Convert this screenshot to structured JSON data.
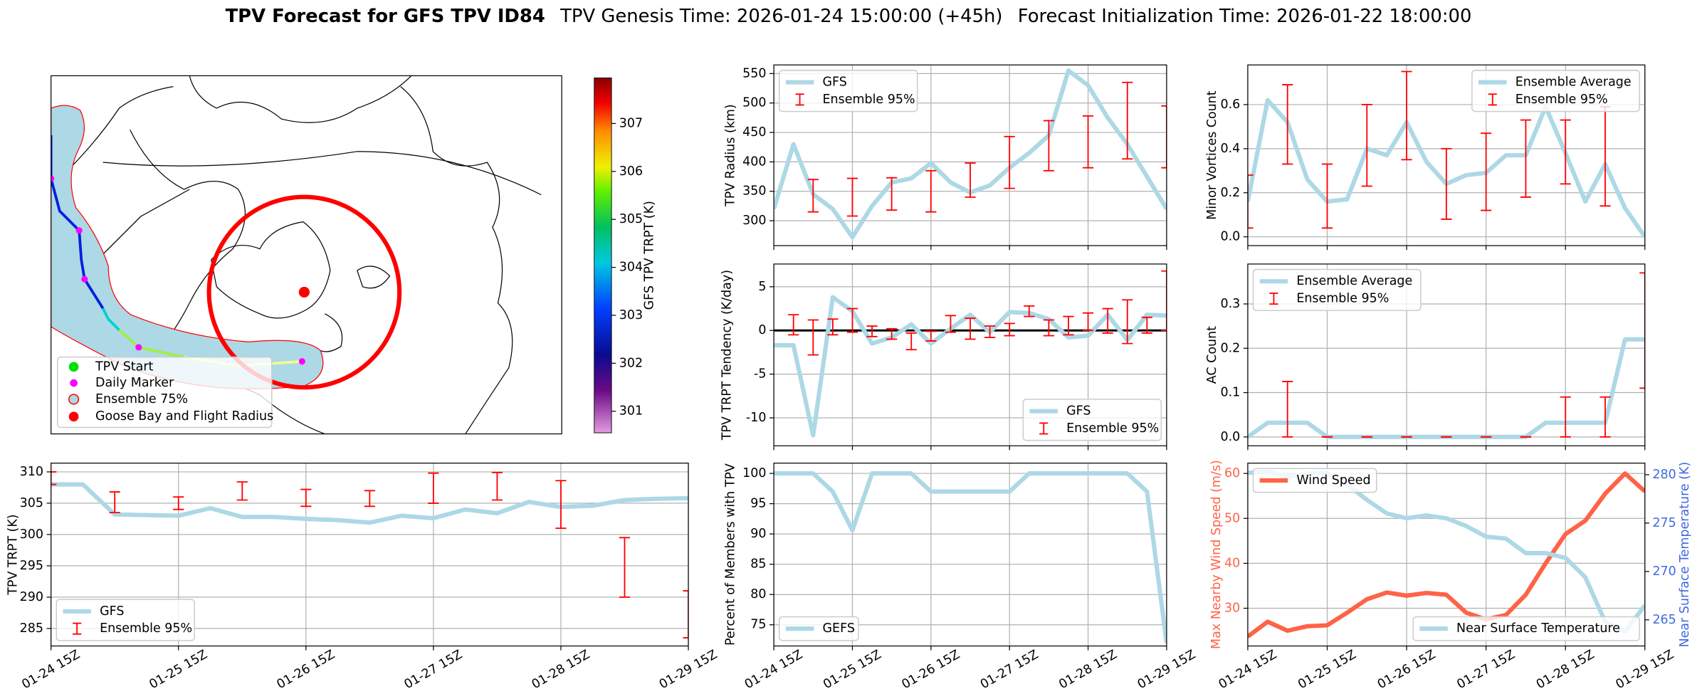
{
  "title_parts": [
    "TPV Forecast for GFS TPV ID84",
    "TPV Genesis Time: 2026-01-24 15:00:00 (+45h)",
    "Forecast Initialization Time: 2026-01-22 18:00:00"
  ],
  "chart_data": [
    {
      "type": "map",
      "legend": [
        "TPV Start",
        "Daily Marker",
        "Ensemble 75%",
        "Goose Bay and Flight Radius"
      ],
      "colorbar_label": "GFS TPV TRPT (K)",
      "clim": [
        300.55,
        307.95
      ],
      "cticks": [
        301,
        302,
        303,
        304,
        305,
        306,
        307
      ]
    },
    {
      "type": "line",
      "ylabel": "TPV TRPT (K)",
      "grid": true,
      "legend": "lower left",
      "x": [
        0,
        6,
        12,
        18,
        24,
        30,
        36,
        42,
        48,
        54,
        60,
        66,
        72,
        78,
        84,
        90,
        96,
        102,
        108,
        114,
        120
      ],
      "xlim": [
        0,
        120
      ],
      "xticks": [
        {
          "value": 0,
          "label": "01-24 15Z"
        },
        {
          "value": 24,
          "label": "01-25 15Z"
        },
        {
          "value": 48,
          "label": "01-26 15Z"
        },
        {
          "value": 72,
          "label": "01-27 15Z"
        },
        {
          "value": 96,
          "label": "01-28 15Z"
        },
        {
          "value": 120,
          "label": "01-29 15Z"
        }
      ],
      "ylim": [
        282.2,
        311.4
      ],
      "yticks": [
        285,
        290,
        295,
        300,
        305,
        310
      ],
      "series": [
        {
          "name": "GFS",
          "color": "#add8e6",
          "values": [
            308,
            308,
            303.2,
            303.1,
            303,
            304.2,
            302.8,
            302.8,
            302.5,
            302.3,
            301.9,
            303,
            302.6,
            304,
            303.4,
            305.2,
            304.4,
            304.6,
            305.5,
            305.7,
            305.8
          ]
        }
      ],
      "errorbars": {
        "name": "Ensemble 95%",
        "color": "#ff0000",
        "x": [
          0,
          12,
          24,
          36,
          48,
          60,
          72,
          84,
          96,
          108,
          120
        ],
        "low": [
          308,
          303.5,
          304,
          305.5,
          304.5,
          304.5,
          305,
          305.5,
          301,
          290,
          283.5
        ],
        "high": [
          310,
          306.8,
          306,
          308.4,
          307.2,
          307,
          309.8,
          309.9,
          308.6,
          299.5,
          291
        ]
      }
    },
    {
      "type": "line",
      "ylabel": "TPV Radius (km)",
      "grid": true,
      "legend": "upper left",
      "x": [
        0,
        6,
        12,
        18,
        24,
        30,
        36,
        42,
        48,
        54,
        60,
        66,
        72,
        78,
        84,
        90,
        96,
        102,
        108,
        114,
        120
      ],
      "xlim": [
        0,
        120
      ],
      "xticks": [
        0,
        24,
        48,
        72,
        96,
        120
      ],
      "ylim": [
        257.7,
        564.7
      ],
      "yticks": [
        300,
        350,
        400,
        450,
        500,
        550
      ],
      "series": [
        {
          "name": "GFS",
          "color": "#add8e6",
          "values": [
            320,
            430,
            345,
            320,
            272,
            325,
            365,
            372,
            398,
            365,
            348,
            360,
            390,
            415,
            445,
            555,
            530,
            475,
            430,
            375,
            320
          ]
        }
      ],
      "errorbars": {
        "name": "Ensemble 95%",
        "color": "#ff0000",
        "x": [
          12,
          24,
          36,
          48,
          60,
          72,
          84,
          96,
          108,
          120
        ],
        "low": [
          315,
          308,
          318,
          315,
          340,
          355,
          385,
          390,
          405,
          390
        ],
        "high": [
          370,
          372,
          373,
          385,
          398,
          443,
          470,
          478,
          535,
          495
        ]
      }
    },
    {
      "type": "line",
      "ylabel": "TPV TRPT Tendency (K/day)",
      "grid": true,
      "legend": "lower right",
      "hline": 0,
      "x": [
        0,
        6,
        12,
        18,
        24,
        30,
        36,
        42,
        48,
        54,
        60,
        66,
        72,
        78,
        84,
        90,
        96,
        102,
        108,
        114,
        120
      ],
      "xlim": [
        0,
        120
      ],
      "xticks": [
        0,
        24,
        48,
        72,
        96,
        120
      ],
      "ylim": [
        -13.2,
        7.6
      ],
      "yticks": [
        -10,
        -5,
        0,
        5
      ],
      "series": [
        {
          "name": "GFS",
          "color": "#add8e6",
          "values": [
            -1.7,
            -1.7,
            -12,
            3.8,
            2.2,
            -1.5,
            -0.8,
            0.7,
            -1.5,
            0.2,
            1.8,
            -0.2,
            2.1,
            2,
            1.3,
            -0.8,
            -0.6,
            1.8,
            -1.1,
            1.8,
            1.7
          ]
        }
      ],
      "errorbars": {
        "name": "Ensemble 95%",
        "color": "#ff0000",
        "x": [
          6,
          12,
          18,
          24,
          30,
          36,
          42,
          48,
          54,
          60,
          66,
          72,
          78,
          84,
          90,
          96,
          102,
          108,
          114,
          120
        ],
        "low": [
          -0.5,
          -2.8,
          -0.5,
          -0.2,
          -0.7,
          -1,
          -2.2,
          -1.2,
          -0.2,
          -1,
          -0.8,
          -0.6,
          1.6,
          -0.6,
          -0.5,
          0,
          -0.3,
          -1.5,
          -0.3,
          0
        ],
        "high": [
          1.8,
          1.2,
          1.3,
          2.5,
          0.5,
          0.2,
          -0.3,
          -0.1,
          1.7,
          1.4,
          0.5,
          0.8,
          2.8,
          1.2,
          1.6,
          2,
          2.5,
          3.5,
          1.5,
          6.8
        ]
      }
    },
    {
      "type": "line",
      "ylabel": "Percent of Members with TPV",
      "grid": true,
      "legend": "lower left",
      "x": [
        0,
        6,
        12,
        18,
        24,
        30,
        36,
        42,
        48,
        54,
        60,
        66,
        72,
        78,
        84,
        90,
        96,
        102,
        108,
        114,
        120
      ],
      "xlim": [
        0,
        120
      ],
      "xticks": [
        {
          "value": 0,
          "label": "01-24 15Z"
        },
        {
          "value": 24,
          "label": "01-25 15Z"
        },
        {
          "value": 48,
          "label": "01-26 15Z"
        },
        {
          "value": 72,
          "label": "01-27 15Z"
        },
        {
          "value": 96,
          "label": "01-28 15Z"
        },
        {
          "value": 120,
          "label": "01-29 15Z"
        }
      ],
      "ylim": [
        71.5,
        101.7
      ],
      "yticks": [
        75,
        80,
        85,
        90,
        95,
        100
      ],
      "series": [
        {
          "name": "GEFS",
          "color": "#add8e6",
          "values": [
            100,
            100,
            100,
            97,
            90.6,
            100,
            100,
            100,
            97,
            97,
            97,
            97,
            97,
            100,
            100,
            100,
            100,
            100,
            100,
            97,
            72
          ]
        }
      ]
    },
    {
      "type": "line",
      "ylabel": "Minor Vortices Count",
      "grid": true,
      "legend": "upper right",
      "x": [
        0,
        6,
        12,
        18,
        24,
        30,
        36,
        42,
        48,
        54,
        60,
        66,
        72,
        78,
        84,
        90,
        96,
        102,
        108,
        114,
        120
      ],
      "xlim": [
        0,
        120
      ],
      "xticks": [
        0,
        24,
        48,
        72,
        96,
        120
      ],
      "ylim": [
        -0.04,
        0.78
      ],
      "yticks": [
        {
          "value": 0,
          "label": "0.0"
        },
        0.2,
        0.4,
        0.6
      ],
      "series": [
        {
          "name": "Ensemble Average",
          "color": "#add8e6",
          "values": [
            0.16,
            0.62,
            0.52,
            0.26,
            0.16,
            0.17,
            0.4,
            0.37,
            0.52,
            0.34,
            0.24,
            0.28,
            0.29,
            0.37,
            0.37,
            0.59,
            0.38,
            0.16,
            0.33,
            0.13,
            0
          ]
        }
      ],
      "errorbars": {
        "name": "Ensemble 95%",
        "color": "#ff0000",
        "x": [
          0,
          12,
          24,
          36,
          48,
          60,
          72,
          84,
          96,
          108
        ],
        "low": [
          0.04,
          0.33,
          0.04,
          0.23,
          0.35,
          0.08,
          0.12,
          0.18,
          0.24,
          0.14
        ],
        "high": [
          0.28,
          0.69,
          0.33,
          0.6,
          0.75,
          0.4,
          0.47,
          0.53,
          0.53,
          0.59
        ]
      }
    },
    {
      "type": "line",
      "ylabel": "AC Count",
      "grid": true,
      "legend": "upper left",
      "x": [
        0,
        6,
        12,
        18,
        24,
        30,
        36,
        42,
        48,
        54,
        60,
        66,
        72,
        78,
        84,
        90,
        96,
        102,
        108,
        114,
        120
      ],
      "xlim": [
        0,
        120
      ],
      "xticks": [
        0,
        24,
        48,
        72,
        96,
        120
      ],
      "ylim": [
        -0.02,
        0.39
      ],
      "yticks": [
        {
          "value": 0,
          "label": "0.0"
        },
        0.1,
        0.2,
        0.3
      ],
      "series": [
        {
          "name": "Ensemble Average",
          "color": "#add8e6",
          "values": [
            0,
            0.032,
            0.032,
            0.032,
            0,
            0,
            0,
            0,
            0,
            0,
            0,
            0,
            0,
            0,
            0,
            0.032,
            0.032,
            0.032,
            0.032,
            0.22,
            0.22
          ]
        }
      ],
      "errorbars": {
        "name": "Ensemble 95%",
        "color": "#ff0000",
        "x": [
          12,
          24,
          36,
          48,
          60,
          72,
          84,
          96,
          108,
          120
        ],
        "low": [
          0,
          0,
          0,
          0,
          0,
          0,
          0,
          0,
          0,
          0.11
        ],
        "high": [
          0.125,
          0,
          0,
          0,
          0,
          0,
          0,
          0.09,
          0.09,
          0.37
        ]
      }
    },
    {
      "type": "line",
      "ylabel": "Max Nearby Wind Speed (m/s)",
      "ycolor": "#ff6347",
      "y2label": "Near Surface Temperature (K)",
      "y2color": "#4169e1",
      "grid": true,
      "legend": "upper left",
      "legend2": "lower right",
      "x": [
        0,
        6,
        12,
        18,
        24,
        30,
        36,
        42,
        48,
        54,
        60,
        66,
        72,
        78,
        84,
        90,
        96,
        102,
        108,
        114,
        120
      ],
      "xlim": [
        0,
        120
      ],
      "xticks": [
        {
          "value": 0,
          "label": "01-24 15Z"
        },
        {
          "value": 24,
          "label": "01-25 15Z"
        },
        {
          "value": 48,
          "label": "01-26 15Z"
        },
        {
          "value": 72,
          "label": "01-27 15Z"
        },
        {
          "value": 96,
          "label": "01-28 15Z"
        },
        {
          "value": 120,
          "label": "01-29 15Z"
        }
      ],
      "ylim": [
        21.6,
        62.3
      ],
      "yticks": [
        30,
        40,
        50,
        60
      ],
      "y2lim": [
        262.3,
        281.2
      ],
      "y2ticks": [
        265,
        270,
        275,
        280
      ],
      "series": [
        {
          "name": "Wind Speed",
          "color": "#ff6347",
          "values": [
            23.7,
            27,
            25,
            26,
            26.2,
            29,
            32,
            33.5,
            32.8,
            33.4,
            33,
            29,
            27.5,
            28.5,
            33,
            40,
            46.5,
            49.5,
            55.5,
            60,
            56
          ]
        },
        {
          "name": "Near Surface Temperature",
          "color": "#add8e6",
          "axis": "y2",
          "values": [
            280.2,
            280.3,
            279.8,
            280.1,
            280.2,
            279,
            277.4,
            276,
            275.5,
            275.8,
            275.5,
            274.7,
            273.6,
            273.4,
            271.9,
            271.9,
            271.4,
            269.4,
            264.8,
            263.8,
            266.5
          ]
        }
      ]
    }
  ]
}
